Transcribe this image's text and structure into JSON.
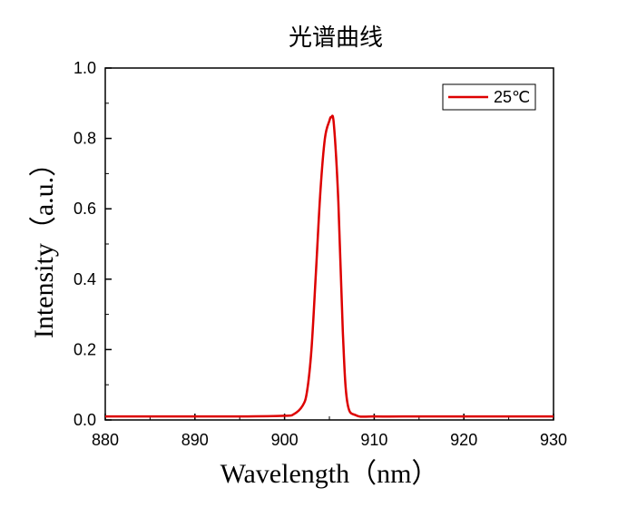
{
  "chart_data": {
    "type": "line",
    "title": "光谱曲线",
    "xlabel": "Wavelength（nm）",
    "ylabel": "Intensity（a.u.）",
    "xlim": [
      880,
      930
    ],
    "ylim": [
      0,
      1.0
    ],
    "x_ticks": [
      "880",
      "890",
      "900",
      "910",
      "920",
      "930"
    ],
    "y_ticks": [
      "0.0",
      "0.2",
      "0.4",
      "0.6",
      "0.8",
      "1.0"
    ],
    "legend_position": "top-right",
    "grid": false,
    "series": [
      {
        "name": "25℃",
        "color": "#dd0000",
        "x": [
          880,
          885,
          890,
          895,
          900,
          901,
          902,
          902.5,
          903,
          903.5,
          904,
          904.5,
          905,
          905.2,
          905.5,
          906,
          906.5,
          907,
          908,
          910,
          915,
          920,
          925,
          930
        ],
        "y": [
          0.01,
          0.01,
          0.01,
          0.01,
          0.012,
          0.016,
          0.04,
          0.08,
          0.2,
          0.42,
          0.65,
          0.8,
          0.85,
          0.86,
          0.84,
          0.62,
          0.25,
          0.05,
          0.013,
          0.01,
          0.01,
          0.01,
          0.01,
          0.01
        ]
      }
    ]
  }
}
